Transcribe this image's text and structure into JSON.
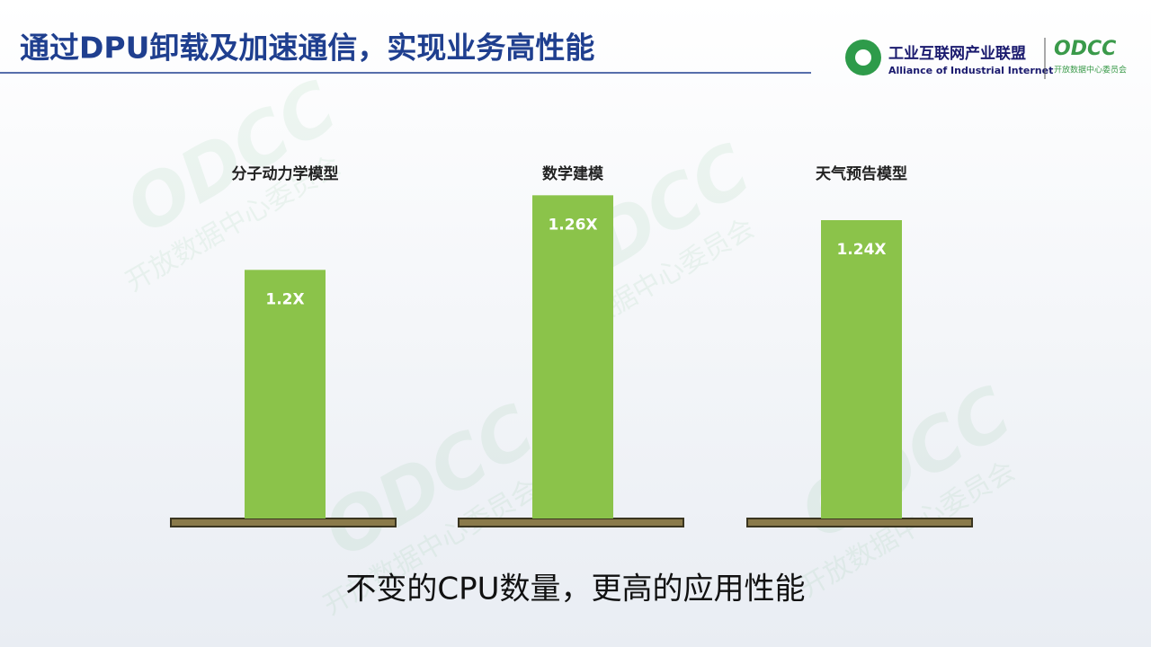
{
  "header": {
    "title": "通过DPU卸载及加速通信，实现业务高性能",
    "logo_cn": "工业互联网产业联盟",
    "logo_en": "Alliance of Industrial Internet",
    "logo2": "ODCC",
    "logo2_sub": "开放数据中心委员会"
  },
  "watermark": {
    "text": "ODCC",
    "sub": "开放数据中心委员会"
  },
  "chart_data": {
    "type": "bar",
    "categories": [
      "分子动力学模型",
      "数学建模",
      "天气预告模型"
    ],
    "values": [
      1.2,
      1.26,
      1.24
    ],
    "value_labels": [
      "1.2X",
      "1.26X",
      "1.24X"
    ],
    "color": "#8bc34a",
    "ylim": [
      1.0,
      1.3
    ]
  },
  "caption": "不变的CPU数量，更高的应用性能"
}
